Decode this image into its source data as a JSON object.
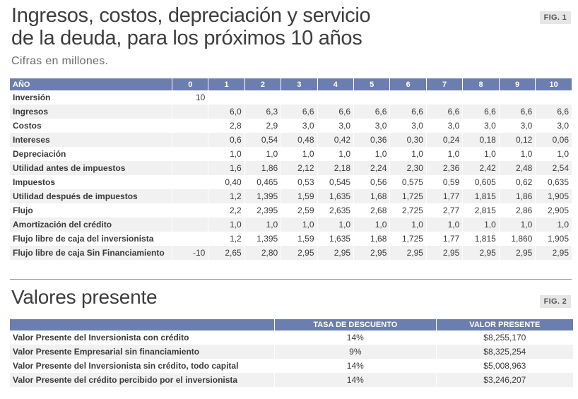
{
  "header": {
    "title_line1": "Ingresos, costos, depreciación y servicio",
    "title_line2": "de la deuda, para los próximos 10 años",
    "subtitle": "Cifras en millones.",
    "fig1": "FIG. 1"
  },
  "table1": {
    "columns": [
      "AÑO",
      "0",
      "1",
      "2",
      "3",
      "4",
      "5",
      "6",
      "7",
      "8",
      "9",
      "10"
    ],
    "rows": [
      {
        "label": "Inversión",
        "values": [
          "10",
          "",
          "",
          "",
          "",
          "",
          "",
          "",
          "",
          "",
          ""
        ]
      },
      {
        "label": "Ingresos",
        "values": [
          "",
          "6,0",
          "6,3",
          "6,6",
          "6,6",
          "6,6",
          "6,6",
          "6,6",
          "6,6",
          "6,6",
          "6,6"
        ]
      },
      {
        "label": "Costos",
        "values": [
          "",
          "2,8",
          "2,9",
          "3,0",
          "3,0",
          "3,0",
          "3,0",
          "3,0",
          "3,0",
          "3,0",
          "3,0"
        ]
      },
      {
        "label": "Intereses",
        "values": [
          "",
          "0,6",
          "0,54",
          "0,48",
          "0,42",
          "0,36",
          "0,30",
          "0,24",
          "0,18",
          "0,12",
          "0,06"
        ]
      },
      {
        "label": "Depreciación",
        "values": [
          "",
          "1,0",
          "1,0",
          "1,0",
          "1,0",
          "1,0",
          "1,0",
          "1,0",
          "1,0",
          "1,0",
          "1,0"
        ]
      },
      {
        "label": "Utilidad antes de impuestos",
        "values": [
          "",
          "1,6",
          "1,86",
          "2,12",
          "2,18",
          "2,24",
          "2,30",
          "2,36",
          "2,42",
          "2,48",
          "2,54"
        ]
      },
      {
        "label": "Impuestos",
        "values": [
          "",
          "0,40",
          "0,465",
          "0,53",
          "0,545",
          "0,56",
          "0,575",
          "0,59",
          "0,605",
          "0,62",
          "0,635"
        ]
      },
      {
        "label": "Utilidad después de impuestos",
        "values": [
          "",
          "1,2",
          "1,395",
          "1,59",
          "1,635",
          "1,68",
          "1,725",
          "1,77",
          "1,815",
          "1,86",
          "1,905"
        ]
      },
      {
        "label": "Flujo",
        "values": [
          "",
          "2,2",
          "2,395",
          "2,59",
          "2,635",
          "2,68",
          "2,725",
          "2,77",
          "2,815",
          "2,86",
          "2,905"
        ]
      },
      {
        "label": "Amortización del crédito",
        "values": [
          "",
          "1,0",
          "1,0",
          "1,0",
          "1,0",
          "1,0",
          "1,0",
          "1,0",
          "1,0",
          "1,0",
          "1,0"
        ]
      },
      {
        "label": "Flujo libre de caja del inversionista",
        "values": [
          "",
          "1,2",
          "1,395",
          "1,59",
          "1,635",
          "1,68",
          "1,725",
          "1,77",
          "1,815",
          "1,860",
          "1,905"
        ]
      },
      {
        "label": "Flujo libre de caja Sin Financiamiento",
        "values": [
          "-10",
          "2,65",
          "2,80",
          "2,95",
          "2,95",
          "2,95",
          "2,95",
          "2,95",
          "2,95",
          "2,95",
          "2,95"
        ]
      }
    ]
  },
  "section2": {
    "title": "Valores presente",
    "fig2": "FIG. 2"
  },
  "table2": {
    "columns": [
      "",
      "TASA DE DESCUENTO",
      "VALOR PRESENTE"
    ],
    "rows": [
      {
        "label": "Valor Presente del Inversionista con crédito",
        "rate": "14%",
        "value": "$8,255,170"
      },
      {
        "label": "Valor Presente Empresarial sin financiamiento",
        "rate": "9%",
        "value": "$8,325,254"
      },
      {
        "label": "Valor Presente del Inversionista sin crédito, todo capital",
        "rate": "14%",
        "value": "$5,008,963"
      },
      {
        "label": "Valor Presente del crédito percibido por el inversionista",
        "rate": "14%",
        "value": "$3,246,207"
      }
    ]
  },
  "colors": {
    "header_blue": "#6c7eb0",
    "row_stripe": "#f1f1f1",
    "text": "#3a3a3a"
  }
}
